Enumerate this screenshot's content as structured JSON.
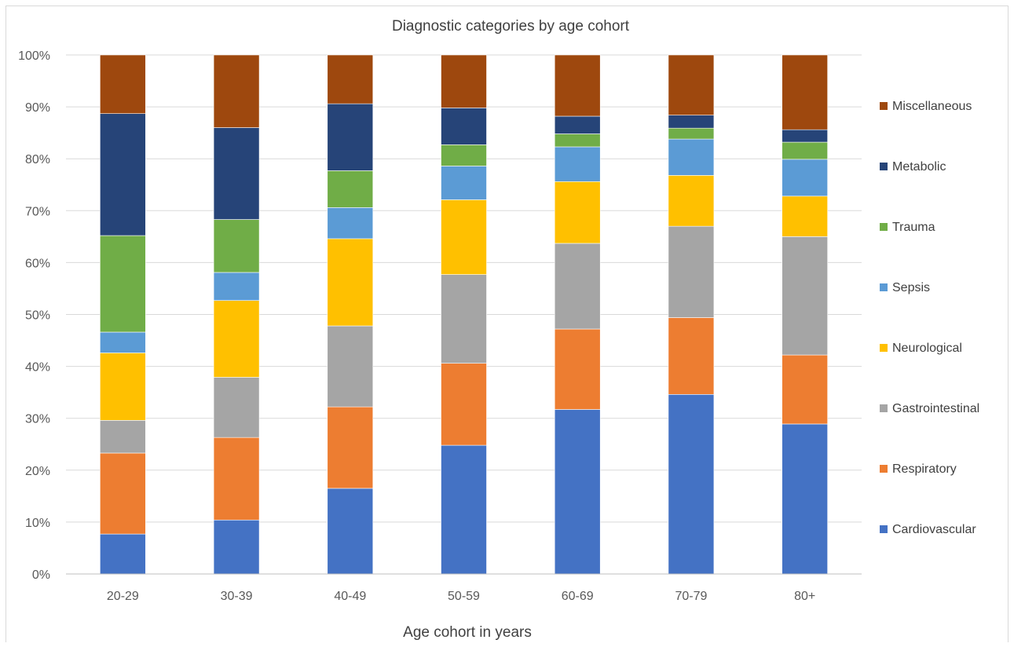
{
  "chart_data": {
    "type": "bar",
    "stacked": true,
    "percent_stacked": true,
    "title": "Diagnostic categories by age cohort",
    "xlabel": "Age cohort in years",
    "ylabel": "",
    "ylim": [
      0,
      100
    ],
    "yticks": [
      "0%",
      "10%",
      "20%",
      "30%",
      "40%",
      "50%",
      "60%",
      "70%",
      "80%",
      "90%",
      "100%"
    ],
    "grid": true,
    "legend_position": "right",
    "categories": [
      "20-29",
      "30-39",
      "40-49",
      "50-59",
      "60-69",
      "70-79",
      "80+"
    ],
    "series": [
      {
        "name": "Cardiovascular",
        "color": "#4472C4",
        "values": [
          7.7,
          10.4,
          16.5,
          24.8,
          31.7,
          34.6,
          28.9
        ]
      },
      {
        "name": "Respiratory",
        "color": "#ED7D31",
        "values": [
          15.6,
          15.9,
          15.7,
          15.8,
          15.5,
          14.8,
          13.3
        ]
      },
      {
        "name": "Gastrointestinal",
        "color": "#A5A5A5",
        "values": [
          6.3,
          11.6,
          15.6,
          17.1,
          16.5,
          17.6,
          22.8
        ]
      },
      {
        "name": "Neurological",
        "color": "#FFC000",
        "values": [
          13.0,
          14.8,
          16.8,
          14.4,
          11.9,
          9.8,
          7.8
        ]
      },
      {
        "name": "Sepsis",
        "color": "#5B9BD5",
        "values": [
          4.0,
          5.4,
          6.0,
          6.5,
          6.7,
          7.0,
          7.1
        ]
      },
      {
        "name": "Trauma",
        "color": "#70AD47",
        "values": [
          18.6,
          10.2,
          7.1,
          4.1,
          2.5,
          2.1,
          3.3
        ]
      },
      {
        "name": "Metabolic",
        "color": "#264478",
        "values": [
          23.5,
          17.7,
          12.9,
          7.1,
          3.4,
          2.5,
          2.4
        ]
      },
      {
        "name": "Miscellaneous",
        "color": "#9E480E",
        "values": [
          11.3,
          14.0,
          9.4,
          10.2,
          11.8,
          11.6,
          14.4
        ]
      }
    ]
  }
}
